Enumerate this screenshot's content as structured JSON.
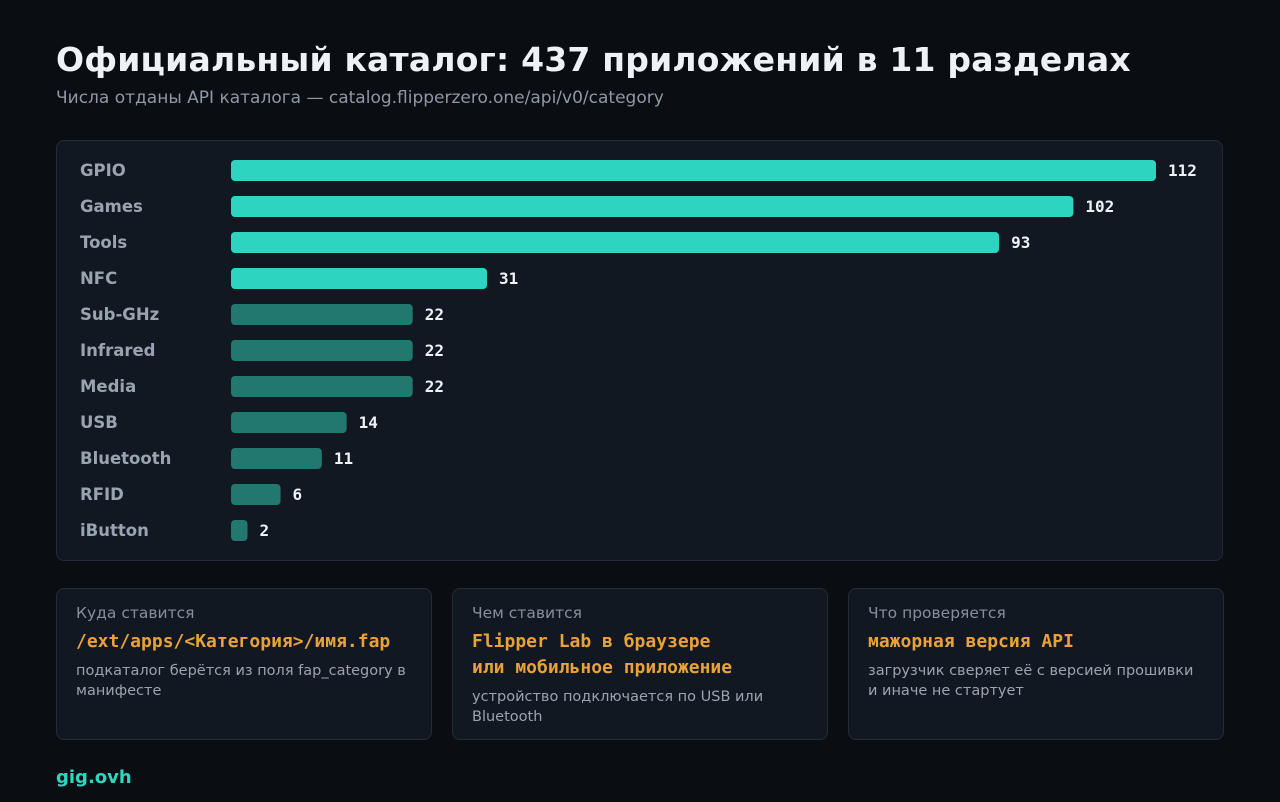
{
  "chart_data": {
    "type": "bar",
    "orientation": "horizontal",
    "title": "Официальный каталог: 437 приложений в 11 разделах",
    "subtitle": "Числа отданы API каталога — catalog.flipperzero.one/api/v0/category",
    "categories": [
      "GPIO",
      "Games",
      "Tools",
      "NFC",
      "Sub-GHz",
      "Infrared",
      "Media",
      "USB",
      "Bluetooth",
      "RFID",
      "iButton"
    ],
    "values": [
      112,
      102,
      93,
      31,
      22,
      22,
      22,
      14,
      11,
      6,
      2
    ],
    "xlim": [
      0,
      112
    ],
    "grid": false,
    "colors": {
      "highlight": "#2dd4bf",
      "muted": "#22776f"
    },
    "highlight_top_n": 4
  },
  "cards": [
    {
      "label": "Куда ставится",
      "value": "/ext/apps/<Категория>/имя.fap",
      "desc": "подкаталог берётся из поля fap_category в манифесте"
    },
    {
      "label": "Чем ставится",
      "value": "Flipper Lab в браузере\nили мобильное приложение",
      "desc": "устройство подключается по USB или Bluetooth"
    },
    {
      "label": "Что проверяется",
      "value": "мажорная версия API",
      "desc": "загрузчик сверяет её с версией прошивки и иначе не стартует"
    }
  ],
  "footer": {
    "brand": "gig.ovh"
  }
}
